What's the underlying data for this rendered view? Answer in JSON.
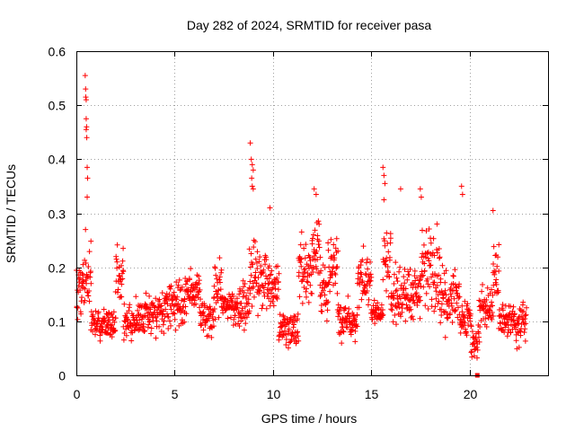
{
  "chart_data": {
    "type": "scatter",
    "title": "Day 282 of 2024, SRMTID for receiver pasa",
    "xlabel": "GPS time / hours",
    "ylabel": "SRMTID / TECUs",
    "xlim": [
      0,
      24
    ],
    "ylim": [
      0,
      0.6
    ],
    "xticks": [
      "0",
      "5",
      "10",
      "15",
      "20"
    ],
    "yticks": [
      "0",
      "0.1",
      "0.2",
      "0.3",
      "0.4",
      "0.5",
      "0.6"
    ],
    "grid": true,
    "marker": "+",
    "color": "#ff0000",
    "clusters": [
      {
        "start": 0.0,
        "end": 0.3,
        "min": 0.07,
        "max": 0.25
      },
      {
        "start": 0.3,
        "end": 0.75,
        "min": 0.08,
        "max": 0.3
      },
      {
        "start": 0.75,
        "end": 2.0,
        "min": 0.06,
        "max": 0.13
      },
      {
        "start": 2.0,
        "end": 2.4,
        "min": 0.1,
        "max": 0.26
      },
      {
        "start": 2.4,
        "end": 3.5,
        "min": 0.05,
        "max": 0.15
      },
      {
        "start": 3.5,
        "end": 4.5,
        "min": 0.06,
        "max": 0.17
      },
      {
        "start": 4.5,
        "end": 5.5,
        "min": 0.07,
        "max": 0.2
      },
      {
        "start": 5.5,
        "end": 6.3,
        "min": 0.1,
        "max": 0.21
      },
      {
        "start": 6.3,
        "end": 7.0,
        "min": 0.05,
        "max": 0.15
      },
      {
        "start": 7.0,
        "end": 7.4,
        "min": 0.09,
        "max": 0.25
      },
      {
        "start": 7.4,
        "end": 8.0,
        "min": 0.09,
        "max": 0.17
      },
      {
        "start": 8.0,
        "end": 8.8,
        "min": 0.06,
        "max": 0.19
      },
      {
        "start": 8.8,
        "end": 9.2,
        "min": 0.1,
        "max": 0.28
      },
      {
        "start": 9.2,
        "end": 9.8,
        "min": 0.1,
        "max": 0.25
      },
      {
        "start": 9.8,
        "end": 10.3,
        "min": 0.11,
        "max": 0.22
      },
      {
        "start": 10.3,
        "end": 11.3,
        "min": 0.04,
        "max": 0.13
      },
      {
        "start": 11.3,
        "end": 12.0,
        "min": 0.1,
        "max": 0.28
      },
      {
        "start": 12.0,
        "end": 12.4,
        "min": 0.15,
        "max": 0.3
      },
      {
        "start": 12.4,
        "end": 12.8,
        "min": 0.08,
        "max": 0.22
      },
      {
        "start": 12.8,
        "end": 13.3,
        "min": 0.12,
        "max": 0.28
      },
      {
        "start": 13.3,
        "end": 14.3,
        "min": 0.05,
        "max": 0.15
      },
      {
        "start": 14.3,
        "end": 15.0,
        "min": 0.1,
        "max": 0.25
      },
      {
        "start": 15.0,
        "end": 15.6,
        "min": 0.08,
        "max": 0.15
      },
      {
        "start": 15.6,
        "end": 16.0,
        "min": 0.12,
        "max": 0.3
      },
      {
        "start": 16.0,
        "end": 17.5,
        "min": 0.07,
        "max": 0.22
      },
      {
        "start": 17.5,
        "end": 18.5,
        "min": 0.1,
        "max": 0.3
      },
      {
        "start": 18.5,
        "end": 19.5,
        "min": 0.05,
        "max": 0.22
      },
      {
        "start": 19.5,
        "end": 20.1,
        "min": 0.05,
        "max": 0.16
      },
      {
        "start": 20.1,
        "end": 20.5,
        "min": 0.02,
        "max": 0.1
      },
      {
        "start": 20.5,
        "end": 21.2,
        "min": 0.07,
        "max": 0.18
      },
      {
        "start": 21.2,
        "end": 21.5,
        "min": 0.12,
        "max": 0.27
      },
      {
        "start": 21.5,
        "end": 22.0,
        "min": 0.05,
        "max": 0.14
      },
      {
        "start": 22.0,
        "end": 22.9,
        "min": 0.04,
        "max": 0.16
      }
    ],
    "spikes": [
      {
        "x": 0.45,
        "y": 0.555
      },
      {
        "x": 0.47,
        "y": 0.53
      },
      {
        "x": 0.48,
        "y": 0.515
      },
      {
        "x": 0.5,
        "y": 0.51
      },
      {
        "x": 0.5,
        "y": 0.475
      },
      {
        "x": 0.52,
        "y": 0.46
      },
      {
        "x": 0.5,
        "y": 0.455
      },
      {
        "x": 0.53,
        "y": 0.44
      },
      {
        "x": 0.55,
        "y": 0.385
      },
      {
        "x": 0.57,
        "y": 0.365
      },
      {
        "x": 0.55,
        "y": 0.33
      },
      {
        "x": 8.85,
        "y": 0.43
      },
      {
        "x": 8.9,
        "y": 0.4
      },
      {
        "x": 8.95,
        "y": 0.39
      },
      {
        "x": 9.0,
        "y": 0.38
      },
      {
        "x": 8.92,
        "y": 0.365
      },
      {
        "x": 8.95,
        "y": 0.35
      },
      {
        "x": 9.0,
        "y": 0.345
      },
      {
        "x": 9.85,
        "y": 0.31
      },
      {
        "x": 12.1,
        "y": 0.345
      },
      {
        "x": 12.2,
        "y": 0.335
      },
      {
        "x": 15.6,
        "y": 0.385
      },
      {
        "x": 15.65,
        "y": 0.37
      },
      {
        "x": 15.7,
        "y": 0.355
      },
      {
        "x": 15.65,
        "y": 0.325
      },
      {
        "x": 16.5,
        "y": 0.345
      },
      {
        "x": 17.5,
        "y": 0.345
      },
      {
        "x": 17.55,
        "y": 0.33
      },
      {
        "x": 19.6,
        "y": 0.35
      },
      {
        "x": 19.65,
        "y": 0.335
      },
      {
        "x": 21.2,
        "y": 0.305
      },
      {
        "x": 20.4,
        "y": 0.0
      }
    ]
  }
}
